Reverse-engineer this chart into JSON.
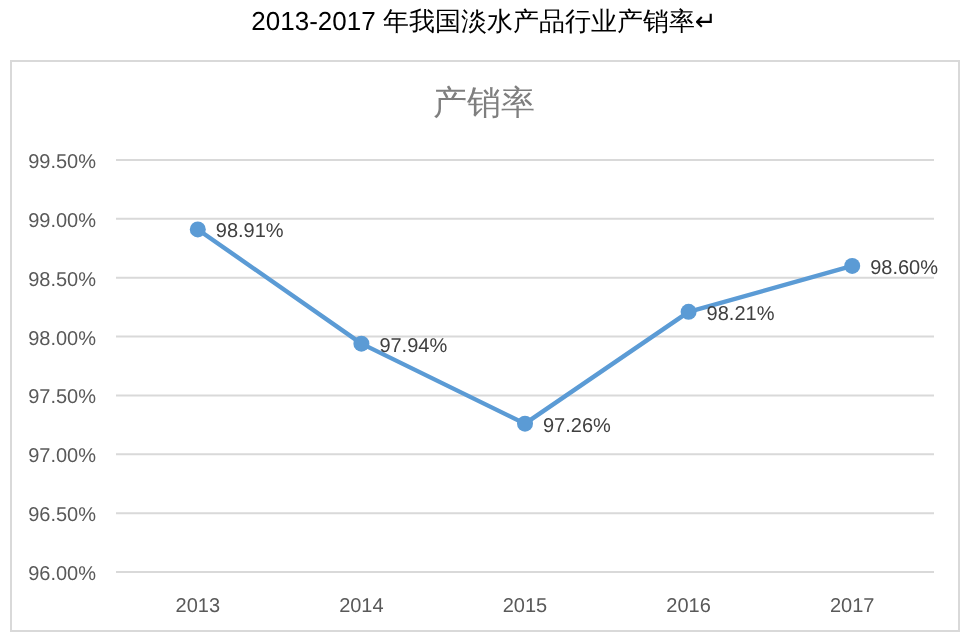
{
  "chart_data": {
    "type": "line",
    "title": "2013-2017 年我国淡水产品行业产销率↵",
    "subtitle": "产销率",
    "categories": [
      "2013",
      "2014",
      "2015",
      "2016",
      "2017"
    ],
    "series": [
      {
        "color": "#5b9bd5",
        "values": [
          98.91,
          97.94,
          97.26,
          98.21,
          98.6
        ],
        "value_labels": [
          "98.91%",
          "97.94%",
          "97.26%",
          "98.21%",
          "98.60%"
        ]
      }
    ],
    "ylim": [
      96.0,
      99.5
    ],
    "yticks": [
      {
        "value": 96.0,
        "label": "96.00%"
      },
      {
        "value": 96.5,
        "label": "96.50%"
      },
      {
        "value": 97.0,
        "label": "97.00%"
      },
      {
        "value": 97.5,
        "label": "97.50%"
      },
      {
        "value": 98.0,
        "label": "98.00%"
      },
      {
        "value": 98.5,
        "label": "98.50%"
      },
      {
        "value": 99.0,
        "label": "99.00%"
      },
      {
        "value": 99.5,
        "label": "99.50%"
      }
    ],
    "grid": "y",
    "marker": "circle",
    "line_style": "solid"
  }
}
